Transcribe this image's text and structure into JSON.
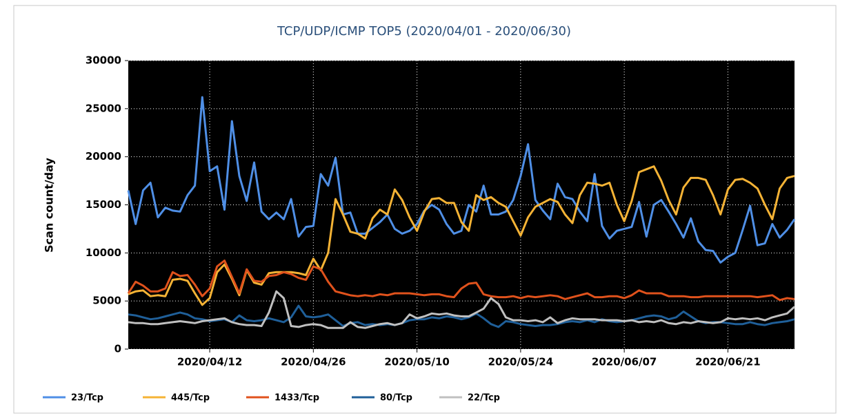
{
  "chart_data": {
    "type": "line",
    "title": "TCP/UDP/ICMP TOP5 (2020/04/01 - 2020/06/30)",
    "y_label": "Scan count/day",
    "x": [
      "2020/04/01",
      "2020/04/02",
      "2020/04/03",
      "2020/04/04",
      "2020/04/05",
      "2020/04/06",
      "2020/04/07",
      "2020/04/08",
      "2020/04/09",
      "2020/04/10",
      "2020/04/11",
      "2020/04/12",
      "2020/04/13",
      "2020/04/14",
      "2020/04/15",
      "2020/04/16",
      "2020/04/17",
      "2020/04/18",
      "2020/04/19",
      "2020/04/20",
      "2020/04/21",
      "2020/04/22",
      "2020/04/23",
      "2020/04/24",
      "2020/04/25",
      "2020/04/26",
      "2020/04/27",
      "2020/04/28",
      "2020/04/29",
      "2020/04/30",
      "2020/05/01",
      "2020/05/02",
      "2020/05/03",
      "2020/05/04",
      "2020/05/05",
      "2020/05/06",
      "2020/05/07",
      "2020/05/08",
      "2020/05/09",
      "2020/05/10",
      "2020/05/11",
      "2020/05/12",
      "2020/05/13",
      "2020/05/14",
      "2020/05/15",
      "2020/05/16",
      "2020/05/17",
      "2020/05/18",
      "2020/05/19",
      "2020/05/20",
      "2020/05/21",
      "2020/05/22",
      "2020/05/23",
      "2020/05/24",
      "2020/05/25",
      "2020/05/26",
      "2020/05/27",
      "2020/05/28",
      "2020/05/29",
      "2020/05/30",
      "2020/05/31",
      "2020/06/01",
      "2020/06/02",
      "2020/06/03",
      "2020/06/04",
      "2020/06/05",
      "2020/06/06",
      "2020/06/07",
      "2020/06/08",
      "2020/06/09",
      "2020/06/10",
      "2020/06/11",
      "2020/06/12",
      "2020/06/13",
      "2020/06/14",
      "2020/06/15",
      "2020/06/16",
      "2020/06/17",
      "2020/06/18",
      "2020/06/19",
      "2020/06/20",
      "2020/06/21",
      "2020/06/22",
      "2020/06/23",
      "2020/06/24",
      "2020/06/25",
      "2020/06/26",
      "2020/06/27",
      "2020/06/28",
      "2020/06/29",
      "2020/06/30"
    ],
    "xlim": [
      "2020/04/01",
      "2020/06/30"
    ],
    "xticks": [
      "2020/04/12",
      "2020/04/26",
      "2020/05/10",
      "2020/05/24",
      "2020/06/07",
      "2020/06/21"
    ],
    "ylim": [
      0,
      30000
    ],
    "yticks": [
      0,
      5000,
      10000,
      15000,
      20000,
      25000,
      30000
    ],
    "grid": true,
    "background": "#000000",
    "series": [
      {
        "name": "23/Tcp",
        "color": "#4f8fe6",
        "values": [
          16500,
          13000,
          16500,
          17300,
          13700,
          14700,
          14400,
          14300,
          16000,
          17000,
          26200,
          18500,
          19000,
          14500,
          23700,
          18000,
          15400,
          19400,
          14300,
          13500,
          14200,
          13500,
          15600,
          11700,
          12700,
          12800,
          18200,
          17000,
          19900,
          14000,
          14200,
          12000,
          12000,
          12600,
          13200,
          14000,
          12500,
          12000,
          12300,
          13000,
          14400,
          15000,
          14500,
          13000,
          12000,
          12300,
          15000,
          14300,
          17000,
          14000,
          14000,
          14300,
          15500,
          18000,
          21300,
          15500,
          14400,
          13500,
          17200,
          15800,
          15600,
          14300,
          13300,
          18200,
          12800,
          11500,
          12300,
          12500,
          12700,
          15300,
          11700,
          15000,
          15500,
          14300,
          13000,
          11600,
          13600,
          11200,
          10300,
          10200,
          9000,
          9600,
          10000,
          12400,
          14900,
          10800,
          11000,
          13000,
          11600,
          12400,
          13500
        ]
      },
      {
        "name": "445/Tcp",
        "color": "#f5b335",
        "values": [
          5700,
          6000,
          6100,
          5500,
          5600,
          5500,
          7200,
          7300,
          7100,
          5800,
          4600,
          5300,
          8000,
          8800,
          7300,
          5600,
          8200,
          6900,
          6700,
          7900,
          8000,
          8000,
          8000,
          7900,
          7700,
          9400,
          8200,
          10000,
          15600,
          14000,
          12200,
          12000,
          11500,
          13600,
          14500,
          14000,
          16600,
          15500,
          13700,
          12300,
          14300,
          15600,
          15700,
          15200,
          15200,
          13200,
          12300,
          16000,
          15500,
          15800,
          15200,
          14800,
          13300,
          11800,
          13700,
          14800,
          15200,
          15600,
          15300,
          14000,
          13100,
          16000,
          17300,
          17200,
          17000,
          17300,
          15000,
          13300,
          15400,
          18400,
          18700,
          19000,
          17500,
          15500,
          14000,
          16800,
          17800,
          17800,
          17600,
          16000,
          14000,
          16600,
          17600,
          17700,
          17300,
          16700,
          15000,
          13500,
          16700,
          17800,
          18000
        ]
      },
      {
        "name": "1433/Tcp",
        "color": "#e0521c",
        "values": [
          5800,
          7000,
          6600,
          6000,
          6000,
          6300,
          8000,
          7600,
          7700,
          6700,
          5500,
          6300,
          8600,
          9200,
          7500,
          5800,
          8300,
          7100,
          7000,
          7600,
          7700,
          8000,
          7800,
          7400,
          7200,
          8600,
          8300,
          7000,
          6000,
          5800,
          5600,
          5500,
          5600,
          5500,
          5700,
          5600,
          5800,
          5800,
          5800,
          5700,
          5600,
          5700,
          5700,
          5500,
          5400,
          6300,
          6800,
          6900,
          5700,
          5500,
          5400,
          5400,
          5500,
          5300,
          5500,
          5400,
          5500,
          5600,
          5500,
          5200,
          5400,
          5600,
          5800,
          5400,
          5400,
          5500,
          5500,
          5300,
          5600,
          6100,
          5800,
          5800,
          5800,
          5500,
          5500,
          5500,
          5400,
          5400,
          5500,
          5500,
          5500,
          5500,
          5500,
          5500,
          5500,
          5400,
          5500,
          5600,
          5100,
          5300,
          5200
        ]
      },
      {
        "name": "80/Tcp",
        "color": "#1f5f99",
        "values": [
          3600,
          3500,
          3300,
          3100,
          3200,
          3400,
          3600,
          3800,
          3600,
          3200,
          3100,
          2900,
          3000,
          3100,
          2800,
          3500,
          3000,
          2900,
          3000,
          3200,
          3000,
          2800,
          3300,
          4500,
          3400,
          3300,
          3400,
          3600,
          3000,
          2400,
          2700,
          2800,
          2500,
          2600,
          2500,
          2600,
          2500,
          2700,
          3000,
          3100,
          3100,
          3300,
          3200,
          3400,
          3300,
          3100,
          3300,
          3700,
          3200,
          2600,
          2300,
          2900,
          2800,
          2600,
          2500,
          2400,
          2500,
          2500,
          2600,
          2800,
          2900,
          2800,
          3000,
          2800,
          3100,
          2900,
          2800,
          2900,
          3000,
          3200,
          3400,
          3500,
          3400,
          3100,
          3300,
          3900,
          3400,
          2900,
          2700,
          2800,
          2800,
          2700,
          2600,
          2600,
          2800,
          2600,
          2500,
          2700,
          2800,
          2900,
          3100
        ]
      },
      {
        "name": "22/Tcp",
        "color": "#c0c0c0",
        "values": [
          2800,
          2700,
          2700,
          2600,
          2600,
          2700,
          2800,
          2900,
          2800,
          2700,
          2900,
          3000,
          3100,
          3200,
          2800,
          2600,
          2500,
          2500,
          2400,
          3800,
          6000,
          5300,
          2400,
          2300,
          2500,
          2600,
          2500,
          2200,
          2200,
          2200,
          2800,
          2300,
          2200,
          2400,
          2600,
          2700,
          2500,
          2700,
          3600,
          3200,
          3400,
          3700,
          3600,
          3700,
          3500,
          3400,
          3400,
          3800,
          4200,
          5300,
          4700,
          3300,
          3000,
          3000,
          2900,
          3000,
          2800,
          3300,
          2700,
          3000,
          3200,
          3100,
          3100,
          3100,
          3000,
          3000,
          3000,
          2900,
          3000,
          2800,
          2900,
          2800,
          3000,
          2700,
          2600,
          2800,
          2700,
          2900,
          2800,
          2700,
          2800,
          3200,
          3100,
          3200,
          3100,
          3200,
          3000,
          3300,
          3500,
          3700,
          4400
        ]
      }
    ]
  }
}
